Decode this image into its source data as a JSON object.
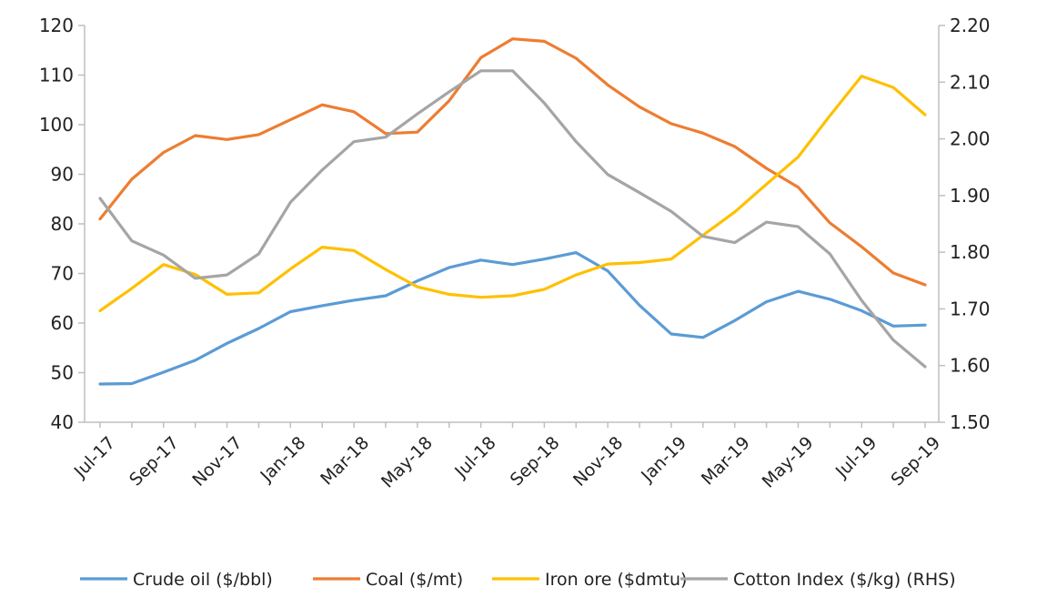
{
  "chart_data": {
    "type": "line",
    "title": "",
    "xlabel": "",
    "ylabel": "",
    "y2label": "",
    "categories": [
      "Jul-17",
      "Aug-17",
      "Sep-17",
      "Oct-17",
      "Nov-17",
      "Dec-17",
      "Jan-18",
      "Feb-18",
      "Mar-18",
      "Apr-18",
      "May-18",
      "Jun-18",
      "Jul-18",
      "Aug-18",
      "Sep-18",
      "Oct-18",
      "Nov-18",
      "Dec-18",
      "Jan-19",
      "Feb-19",
      "Mar-19",
      "Apr-19",
      "May-19",
      "Jun-19",
      "Jul-19",
      "Aug-19",
      "Sep-19"
    ],
    "x_tick_labels": [
      "Jul-17",
      "Sep-17",
      "Nov-17",
      "Jan-18",
      "Mar-18",
      "May-18",
      "Jul-18",
      "Sep-18",
      "Nov-18",
      "Jan-19",
      "Mar-19",
      "May-19",
      "Jul-19",
      "Sep-19"
    ],
    "ylim": [
      40,
      120
    ],
    "y_ticks": [
      "40",
      "50",
      "60",
      "70",
      "80",
      "90",
      "100",
      "110",
      "120"
    ],
    "y2lim": [
      1.5,
      2.2
    ],
    "y2_ticks": [
      "1.50",
      "1.60",
      "1.70",
      "1.80",
      "1.90",
      "2.00",
      "2.10",
      "2.20"
    ],
    "grid": false,
    "legend_position": "bottom",
    "series": [
      {
        "name": "Crude oil ($/bbl)",
        "axis": "left",
        "color": "#5B9BD5",
        "values": [
          47.7,
          47.8,
          50.1,
          52.5,
          55.9,
          58.9,
          62.3,
          63.5,
          64.6,
          65.5,
          68.5,
          71.2,
          72.7,
          71.8,
          72.9,
          74.2,
          70.5,
          63.6,
          57.8,
          57.1,
          60.5,
          64.3,
          66.4,
          64.8,
          62.5,
          59.4,
          59.6
        ]
      },
      {
        "name": "Coal ($/mt)",
        "axis": "left",
        "color": "#ED7D31",
        "values": [
          81.0,
          89.0,
          94.4,
          97.8,
          97.0,
          98.0,
          101.0,
          104.0,
          102.6,
          98.2,
          98.5,
          104.8,
          113.5,
          117.3,
          116.8,
          113.4,
          108.0,
          103.6,
          100.2,
          98.3,
          95.6,
          91.2,
          87.4,
          80.2,
          75.4,
          70.1,
          67.7
        ]
      },
      {
        "name": "Iron ore ($dmtu)",
        "axis": "left",
        "color": "#FFC000",
        "values": [
          62.5,
          67.0,
          71.8,
          69.8,
          65.8,
          66.1,
          70.9,
          75.3,
          74.6,
          70.8,
          67.3,
          65.8,
          65.2,
          65.5,
          66.8,
          69.7,
          71.9,
          72.2,
          72.9,
          77.7,
          82.4,
          88.0,
          93.5,
          101.8,
          109.8,
          107.5,
          102.0
        ]
      },
      {
        "name": "Cotton Index ($/kg) (RHS)",
        "axis": "right",
        "color": "#A5A5A5",
        "values": [
          1.895,
          1.82,
          1.795,
          1.754,
          1.76,
          1.797,
          1.888,
          1.945,
          1.995,
          2.003,
          2.044,
          2.083,
          2.12,
          2.12,
          2.063,
          1.995,
          1.937,
          1.905,
          1.872,
          1.828,
          1.817,
          1.853,
          1.845,
          1.797,
          1.715,
          1.645,
          1.598
        ]
      }
    ]
  }
}
